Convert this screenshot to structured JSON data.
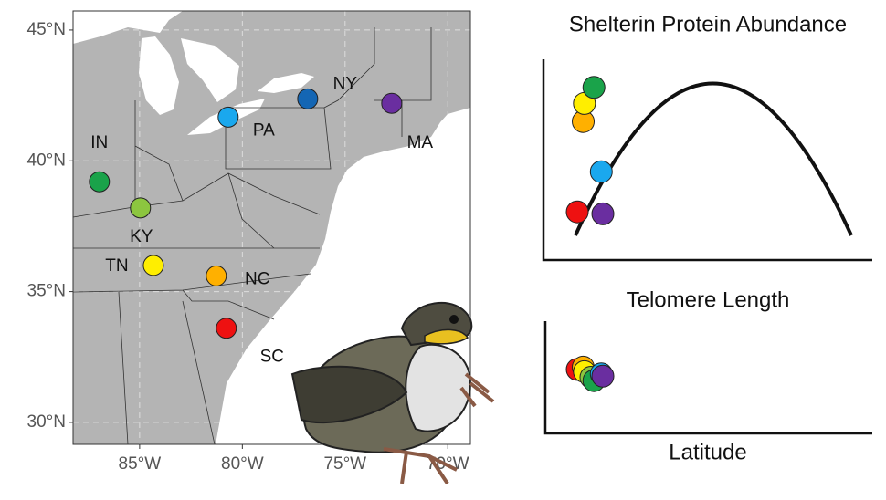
{
  "map": {
    "xlim": [
      -88.24,
      -68.9
    ],
    "ylim": [
      29.16,
      45.73
    ],
    "xticks": [
      {
        "value": -85,
        "label": "85°W"
      },
      {
        "value": -80,
        "label": "80°W"
      },
      {
        "value": -75,
        "label": "75°W"
      },
      {
        "value": -70,
        "label": "70°W"
      }
    ],
    "yticks": [
      {
        "value": 30,
        "label": "30°N"
      },
      {
        "value": 35,
        "label": "35°N"
      },
      {
        "value": 40,
        "label": "40°N"
      },
      {
        "value": 45,
        "label": "45°N"
      }
    ],
    "grid": true,
    "sites": [
      {
        "name": "IN",
        "lon": -86.96,
        "lat": 39.2,
        "color": "#1aa34a"
      },
      {
        "name": "KY",
        "lon": -84.96,
        "lat": 38.2,
        "color": "#8cc63f"
      },
      {
        "name": "TN",
        "lon": -84.33,
        "lat": 36.0,
        "color": "#ffee00"
      },
      {
        "name": "NC",
        "lon": -81.27,
        "lat": 35.6,
        "color": "#ffb000"
      },
      {
        "name": "SC",
        "lon": -80.78,
        "lat": 33.6,
        "color": "#ee1111"
      },
      {
        "name": "PA",
        "lon": -80.69,
        "lat": 41.67,
        "color": "#1aa8ee"
      },
      {
        "name": "NY",
        "lon": -76.82,
        "lat": 42.37,
        "color": "#1466b4"
      },
      {
        "name": "MA",
        "lon": -72.73,
        "lat": 42.2,
        "color": "#6a2ea0"
      }
    ]
  },
  "charts": [
    {
      "type": "scatter",
      "title": "Shelterin Protein Abundance",
      "xlim": [
        32.6,
        43.2
      ],
      "ylim": [
        0,
        100
      ],
      "sites": [
        4,
        3,
        2,
        0,
        5,
        7
      ],
      "values": [
        24,
        69,
        78,
        86,
        44,
        23
      ]
    },
    {
      "type": "scatter",
      "title": "Telomere Length",
      "x_label": "Latitude",
      "xlim": [
        32.6,
        43.2
      ],
      "ylim": [
        0,
        100
      ],
      "sites": [
        4,
        3,
        2,
        1,
        0,
        5,
        7
      ],
      "values": [
        57,
        59,
        55,
        50,
        47,
        53,
        51
      ]
    }
  ]
}
